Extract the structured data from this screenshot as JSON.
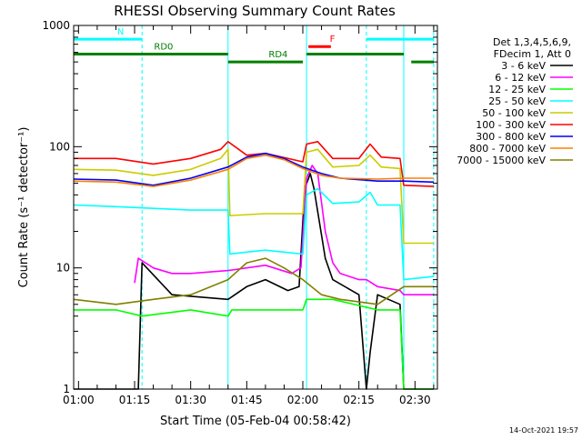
{
  "chart_data": {
    "type": "line",
    "title": "RHESSI Observing Summary Count Rates",
    "xlabel": "Start Time (05-Feb-04 00:58:42)",
    "ylabel": "Count Rate (s⁻¹ detector⁻¹)",
    "yscale": "log",
    "xlim": [
      "00:58:42",
      "02:36:00"
    ],
    "ylim": [
      1,
      1000
    ],
    "x_ticks": [
      {
        "t": "01:00",
        "label": "01:00"
      },
      {
        "t": "01:15",
        "label": "01:15"
      },
      {
        "t": "01:30",
        "label": "01:30"
      },
      {
        "t": "01:45",
        "label": "01:45"
      },
      {
        "t": "02:00",
        "label": "02:00"
      },
      {
        "t": "02:15",
        "label": "02:15"
      },
      {
        "t": "02:30",
        "label": "02:30"
      }
    ],
    "y_ticks": [
      {
        "v": 1,
        "label": "1"
      },
      {
        "v": 10,
        "label": "10"
      },
      {
        "v": 100,
        "label": "100"
      },
      {
        "v": 1000,
        "label": "1000"
      }
    ],
    "grid": false,
    "legend_position": "right",
    "legend_header": [
      "Det 1,3,4,5,6,9,",
      "FDecim 1, Att 0"
    ],
    "night_boundaries": [
      "00:58:42",
      "01:17:00",
      "02:17:00",
      "02:35:00"
    ],
    "att_boundaries": [
      "01:40:00",
      "02:01:00",
      "02:27:00"
    ],
    "flags": [
      {
        "label": "N",
        "color": "#00ffff",
        "start": "00:58:42",
        "end": "01:17:00",
        "level": 770
      },
      {
        "label": "",
        "color": "#00ffff",
        "start": "02:17:00",
        "end": "02:35:00",
        "level": 770
      },
      {
        "label": "F",
        "color": "#ff0000",
        "start": "02:01:30",
        "end": "02:07:30",
        "level": 670
      },
      {
        "label": "RD0",
        "color": "#008000",
        "start": "00:58:42",
        "end": "01:40:00",
        "level": 580
      },
      {
        "label": "",
        "color": "#008000",
        "start": "02:01:00",
        "end": "02:27:00",
        "level": 580
      },
      {
        "label": "RD4",
        "color": "#008000",
        "start": "01:40:00",
        "end": "02:00:00",
        "level": 500
      },
      {
        "label": "",
        "color": "#008000",
        "start": "02:29:00",
        "end": "02:35:00",
        "level": 500
      }
    ],
    "series": [
      {
        "name": "3 - 6 keV",
        "color": "#000000",
        "points": [
          [
            "00:58:42",
            1
          ],
          [
            "01:16:00",
            1
          ],
          [
            "01:17:00",
            11
          ],
          [
            "01:25:00",
            6
          ],
          [
            "01:40:00",
            5.5
          ],
          [
            "01:45:00",
            7
          ],
          [
            "01:50:00",
            8
          ],
          [
            "01:56:00",
            6.5
          ],
          [
            "01:59:00",
            7
          ],
          [
            "02:00:30",
            45
          ],
          [
            "02:02:00",
            60
          ],
          [
            "02:03:00",
            45
          ],
          [
            "02:06:00",
            12
          ],
          [
            "02:08:00",
            8
          ],
          [
            "02:15:00",
            6
          ],
          [
            "02:17:00",
            1
          ],
          [
            "02:18:00",
            2
          ],
          [
            "02:20:00",
            6
          ],
          [
            "02:26:00",
            5
          ],
          [
            "02:27:00",
            1
          ],
          [
            "02:35:00",
            1
          ]
        ]
      },
      {
        "name": "6 - 12 keV",
        "color": "#ff00ff",
        "points": [
          [
            "01:15:00",
            7.5
          ],
          [
            "01:16:00",
            12
          ],
          [
            "01:20:00",
            10
          ],
          [
            "01:25:00",
            9
          ],
          [
            "01:30:00",
            9
          ],
          [
            "01:40:00",
            9.5
          ],
          [
            "01:45:00",
            10
          ],
          [
            "01:50:00",
            10.5
          ],
          [
            "01:57:00",
            9
          ],
          [
            "01:59:30",
            10
          ],
          [
            "02:01:00",
            55
          ],
          [
            "02:02:30",
            70
          ],
          [
            "02:04:00",
            60
          ],
          [
            "02:06:00",
            20
          ],
          [
            "02:08:00",
            11
          ],
          [
            "02:10:00",
            9
          ],
          [
            "02:15:00",
            8
          ],
          [
            "02:17:00",
            8
          ],
          [
            "02:20:00",
            7
          ],
          [
            "02:26:00",
            6.5
          ],
          [
            "02:27:00",
            6
          ],
          [
            "02:35:00",
            6
          ]
        ]
      },
      {
        "name": "12 - 25 keV",
        "color": "#00ff00",
        "points": [
          [
            "00:58:42",
            4.5
          ],
          [
            "01:10:00",
            4.5
          ],
          [
            "01:17:00",
            4
          ],
          [
            "01:30:00",
            4.5
          ],
          [
            "01:40:00",
            4
          ],
          [
            "01:41:00",
            4.5
          ],
          [
            "01:55:00",
            4.5
          ],
          [
            "02:00:00",
            4.5
          ],
          [
            "02:01:00",
            5.5
          ],
          [
            "02:08:00",
            5.5
          ],
          [
            "02:20:00",
            4.5
          ],
          [
            "02:26:00",
            4.5
          ],
          [
            "02:27:00",
            1
          ],
          [
            "02:35:00",
            1
          ]
        ]
      },
      {
        "name": "25 - 50 keV",
        "color": "#00ffff",
        "points": [
          [
            "00:58:42",
            33
          ],
          [
            "01:10:00",
            32
          ],
          [
            "01:20:00",
            31
          ],
          [
            "01:30:00",
            30
          ],
          [
            "01:40:00",
            30
          ],
          [
            "01:40:30",
            13
          ],
          [
            "01:45:00",
            13.5
          ],
          [
            "01:50:00",
            14
          ],
          [
            "01:55:00",
            13.5
          ],
          [
            "02:00:00",
            13
          ],
          [
            "02:01:00",
            40
          ],
          [
            "02:04:00",
            45
          ],
          [
            "02:08:00",
            34
          ],
          [
            "02:15:00",
            35
          ],
          [
            "02:18:00",
            42
          ],
          [
            "02:20:00",
            33
          ],
          [
            "02:26:00",
            33
          ],
          [
            "02:27:00",
            8
          ],
          [
            "02:35:00",
            8.5
          ]
        ]
      },
      {
        "name": "50 - 100 keV",
        "color": "#cccc00",
        "points": [
          [
            "00:58:42",
            65
          ],
          [
            "01:10:00",
            64
          ],
          [
            "01:20:00",
            58
          ],
          [
            "01:30:00",
            65
          ],
          [
            "01:38:00",
            80
          ],
          [
            "01:40:00",
            95
          ],
          [
            "01:40:30",
            27
          ],
          [
            "01:50:00",
            28
          ],
          [
            "02:00:00",
            28
          ],
          [
            "02:01:00",
            90
          ],
          [
            "02:04:00",
            95
          ],
          [
            "02:08:00",
            68
          ],
          [
            "02:15:00",
            70
          ],
          [
            "02:18:00",
            85
          ],
          [
            "02:21:00",
            68
          ],
          [
            "02:26:00",
            66
          ],
          [
            "02:27:00",
            16
          ],
          [
            "02:35:00",
            16
          ]
        ]
      },
      {
        "name": "100 - 300 keV",
        "color": "#ff0000",
        "points": [
          [
            "00:58:42",
            80
          ],
          [
            "01:10:00",
            80
          ],
          [
            "01:20:00",
            72
          ],
          [
            "01:30:00",
            80
          ],
          [
            "01:38:00",
            95
          ],
          [
            "01:40:00",
            110
          ],
          [
            "01:45:00",
            85
          ],
          [
            "01:50:00",
            88
          ],
          [
            "02:00:00",
            75
          ],
          [
            "02:01:00",
            105
          ],
          [
            "02:04:00",
            110
          ],
          [
            "02:08:00",
            80
          ],
          [
            "02:15:00",
            80
          ],
          [
            "02:18:00",
            105
          ],
          [
            "02:21:00",
            82
          ],
          [
            "02:26:00",
            80
          ],
          [
            "02:27:00",
            48
          ],
          [
            "02:35:00",
            47
          ]
        ]
      },
      {
        "name": "300 - 800 keV",
        "color": "#0000ff",
        "points": [
          [
            "00:58:42",
            54
          ],
          [
            "01:10:00",
            53
          ],
          [
            "01:20:00",
            48
          ],
          [
            "01:30:00",
            55
          ],
          [
            "01:40:00",
            68
          ],
          [
            "01:45:00",
            82
          ],
          [
            "01:50:00",
            88
          ],
          [
            "01:55:00",
            80
          ],
          [
            "02:00:00",
            68
          ],
          [
            "02:05:00",
            60
          ],
          [
            "02:10:00",
            55
          ],
          [
            "02:20:00",
            52
          ],
          [
            "02:27:00",
            52
          ],
          [
            "02:35:00",
            51
          ]
        ]
      },
      {
        "name": "800 - 7000 keV",
        "color": "#ff8000",
        "points": [
          [
            "00:58:42",
            52
          ],
          [
            "01:10:00",
            51
          ],
          [
            "01:20:00",
            47
          ],
          [
            "01:30:00",
            53
          ],
          [
            "01:40:00",
            65
          ],
          [
            "01:45:00",
            80
          ],
          [
            "01:50:00",
            85
          ],
          [
            "01:55:00",
            78
          ],
          [
            "02:00:00",
            66
          ],
          [
            "02:05:00",
            58
          ],
          [
            "02:10:00",
            55
          ],
          [
            "02:20:00",
            54
          ],
          [
            "02:27:00",
            55
          ],
          [
            "02:35:00",
            55
          ]
        ]
      },
      {
        "name": "7000 - 15000 keV",
        "color": "#808000",
        "points": [
          [
            "00:58:42",
            5.5
          ],
          [
            "01:10:00",
            5
          ],
          [
            "01:20:00",
            5.5
          ],
          [
            "01:30:00",
            6
          ],
          [
            "01:40:00",
            8
          ],
          [
            "01:45:00",
            11
          ],
          [
            "01:50:00",
            12
          ],
          [
            "01:55:00",
            10
          ],
          [
            "02:00:00",
            8
          ],
          [
            "02:05:00",
            6
          ],
          [
            "02:10:00",
            5.5
          ],
          [
            "02:20:00",
            5
          ],
          [
            "02:27:00",
            7
          ],
          [
            "02:35:00",
            7
          ]
        ]
      }
    ],
    "footer_timestamp": "14-Oct-2021 19:57"
  }
}
